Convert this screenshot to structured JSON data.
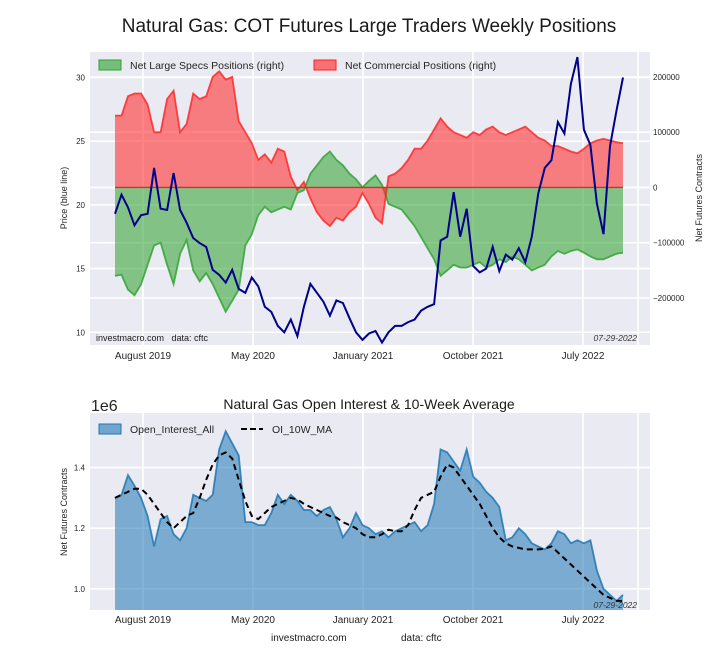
{
  "figure": {
    "title": "Natural Gas: COT Futures Large Traders Weekly Positions",
    "footer_site": "investmacro.com",
    "footer_data": "data: cftc"
  },
  "chart_data": [
    {
      "type": "area",
      "title": "Natural Gas: COT Futures Large Traders Weekly Positions",
      "xlabel": "",
      "ylabel": "Price (blue line)",
      "ylabel_right": "Net Futures Contracts",
      "x_tick_labels": [
        "August 2019",
        "May 2020",
        "January 2021",
        "October 2021",
        "July 2022"
      ],
      "y_left_ticks": [
        "10",
        "15",
        "20",
        "25",
        "30"
      ],
      "y_right_ticks": [
        "−200000",
        "−100000",
        "0",
        "100000",
        "200000"
      ],
      "ylim_left": [
        9,
        32
      ],
      "ylim_right": [
        -285000,
        245000
      ],
      "grid": true,
      "legend_position": "top-left",
      "watermark": "investmacro.com   data: cftc",
      "date_stamp": "07-29-2022",
      "x": [
        0,
        2,
        4,
        6,
        8,
        10,
        12,
        14,
        16,
        18,
        20,
        22,
        24,
        26,
        28,
        30,
        32,
        34,
        36,
        38,
        40,
        42,
        44,
        46,
        48,
        50,
        52,
        54,
        56,
        58,
        60,
        62,
        64,
        66,
        68,
        70,
        72,
        74,
        76,
        78,
        80,
        82,
        84,
        86,
        88,
        90,
        92,
        94,
        96,
        98,
        100,
        102,
        104,
        106,
        108,
        110,
        112,
        114,
        116,
        118,
        120,
        122,
        124,
        126,
        128,
        130,
        132,
        134,
        136,
        138,
        140,
        142,
        144,
        146,
        148,
        150,
        152,
        154,
        156
      ],
      "series": [
        {
          "name": "Net Large Specs Positions (right)",
          "axis": "right",
          "color": "#2ca02c",
          "values": [
            -160000,
            -158000,
            -185000,
            -195000,
            -175000,
            -140000,
            -105000,
            -100000,
            -140000,
            -175000,
            -120000,
            -95000,
            -150000,
            -170000,
            -155000,
            -175000,
            -200000,
            -225000,
            -205000,
            -185000,
            -105000,
            -85000,
            -50000,
            -35000,
            -45000,
            -40000,
            -35000,
            -40000,
            -10000,
            -5000,
            25000,
            40000,
            55000,
            65000,
            50000,
            40000,
            25000,
            15000,
            0,
            12000,
            22000,
            5000,
            -30000,
            -35000,
            -40000,
            -55000,
            -70000,
            -90000,
            -110000,
            -130000,
            -160000,
            -150000,
            -140000,
            -145000,
            -145000,
            -140000,
            -135000,
            -145000,
            -140000,
            -130000,
            -135000,
            -125000,
            -130000,
            -140000,
            -150000,
            -145000,
            -140000,
            -125000,
            -115000,
            -120000,
            -115000,
            -112000,
            -118000,
            -125000,
            -130000,
            -130000,
            -125000,
            -120000,
            -118000
          ]
        },
        {
          "name": "Net Commercial Positions (right)",
          "axis": "right",
          "color": "#ff2020",
          "values": [
            130000,
            130000,
            165000,
            170000,
            170000,
            150000,
            100000,
            100000,
            160000,
            175000,
            100000,
            115000,
            170000,
            160000,
            165000,
            200000,
            210000,
            195000,
            200000,
            120000,
            100000,
            80000,
            50000,
            60000,
            45000,
            70000,
            65000,
            20000,
            -5000,
            10000,
            -20000,
            -45000,
            -60000,
            -70000,
            -55000,
            -60000,
            -45000,
            -35000,
            -10000,
            -30000,
            -55000,
            -65000,
            20000,
            25000,
            35000,
            50000,
            70000,
            70000,
            85000,
            105000,
            125000,
            110000,
            100000,
            95000,
            90000,
            100000,
            95000,
            105000,
            110000,
            100000,
            95000,
            100000,
            105000,
            110000,
            100000,
            90000,
            85000,
            75000,
            75000,
            70000,
            65000,
            62000,
            70000,
            80000,
            85000,
            88000,
            85000,
            82000,
            80000
          ]
        },
        {
          "name": "Price (blue line)",
          "axis": "left",
          "color": "#00008b",
          "values": [
            19.3,
            20.8,
            19.8,
            18.4,
            19.2,
            19.3,
            22.9,
            19.7,
            19.6,
            22.5,
            19.6,
            18.6,
            17.4,
            17.0,
            16.7,
            14.9,
            14.5,
            13.9,
            14.9,
            13.4,
            13.1,
            14.3,
            13.6,
            12.0,
            11.6,
            10.5,
            10.0,
            11.0,
            9.7,
            12.0,
            13.8,
            13.1,
            12.4,
            11.3,
            12.5,
            12.3,
            11.1,
            10.0,
            9.4,
            9.9,
            10.1,
            9.2,
            10.0,
            10.5,
            10.5,
            10.8,
            11.0,
            11.7,
            12.0,
            12.2,
            17.2,
            17.5,
            21.0,
            17.5,
            19.7,
            15.2,
            14.7,
            15.0,
            16.7,
            14.8,
            16.1,
            15.7,
            16.6,
            15.5,
            17.5,
            20.9,
            22.9,
            23.5,
            26.5,
            25.6,
            29.5,
            31.6,
            25.9,
            24.7,
            20.1,
            17.7,
            24.6,
            27.4,
            30.0
          ]
        }
      ]
    },
    {
      "type": "area",
      "title": "Natural Gas Open Interest & 10-Week Average",
      "xlabel": "",
      "ylabel": "Net Futures Contracts",
      "y_scale_label": "1e6",
      "x_tick_labels": [
        "August 2019",
        "May 2020",
        "January 2021",
        "October 2021",
        "July 2022"
      ],
      "y_ticks": [
        "1.0",
        "1.2",
        "1.4"
      ],
      "ylim": [
        0.93,
        1.58
      ],
      "grid": true,
      "legend_position": "top-left",
      "date_stamp": "07-29-2022",
      "x": [
        0,
        2,
        4,
        6,
        8,
        10,
        12,
        14,
        16,
        18,
        20,
        22,
        24,
        26,
        28,
        30,
        32,
        34,
        36,
        38,
        40,
        42,
        44,
        46,
        48,
        50,
        52,
        54,
        56,
        58,
        60,
        62,
        64,
        66,
        68,
        70,
        72,
        74,
        76,
        78,
        80,
        82,
        84,
        86,
        88,
        90,
        92,
        94,
        96,
        98,
        100,
        102,
        104,
        106,
        108,
        110,
        112,
        114,
        116,
        118,
        120,
        122,
        124,
        126,
        128,
        130,
        132,
        134,
        136,
        138,
        140,
        142,
        144,
        146,
        148,
        150,
        152,
        154,
        156
      ],
      "series": [
        {
          "name": "Open_Interest_All",
          "color": "#1f77b4",
          "values": [
            1.3,
            1.31,
            1.375,
            1.34,
            1.3,
            1.24,
            1.14,
            1.23,
            1.24,
            1.18,
            1.16,
            1.2,
            1.31,
            1.3,
            1.29,
            1.31,
            1.46,
            1.52,
            1.48,
            1.44,
            1.22,
            1.22,
            1.21,
            1.21,
            1.25,
            1.31,
            1.28,
            1.31,
            1.29,
            1.26,
            1.26,
            1.24,
            1.26,
            1.27,
            1.23,
            1.17,
            1.2,
            1.25,
            1.21,
            1.2,
            1.18,
            1.19,
            1.17,
            1.19,
            1.2,
            1.21,
            1.22,
            1.19,
            1.21,
            1.28,
            1.46,
            1.45,
            1.42,
            1.39,
            1.46,
            1.37,
            1.35,
            1.32,
            1.3,
            1.27,
            1.16,
            1.17,
            1.2,
            1.18,
            1.15,
            1.14,
            1.13,
            1.15,
            1.19,
            1.18,
            1.15,
            1.16,
            1.15,
            1.16,
            1.06,
            1.0,
            0.98,
            0.96,
            0.98
          ]
        },
        {
          "name": "OI_10W_MA",
          "color": "#000000",
          "values": [
            1.3,
            1.31,
            1.32,
            1.33,
            1.33,
            1.31,
            1.28,
            1.25,
            1.22,
            1.2,
            1.22,
            1.24,
            1.25,
            1.3,
            1.36,
            1.41,
            1.44,
            1.45,
            1.43,
            1.36,
            1.29,
            1.24,
            1.23,
            1.25,
            1.27,
            1.28,
            1.29,
            1.3,
            1.295,
            1.28,
            1.27,
            1.26,
            1.25,
            1.24,
            1.235,
            1.22,
            1.21,
            1.2,
            1.18,
            1.17,
            1.17,
            1.18,
            1.195,
            1.19,
            1.19,
            1.21,
            1.26,
            1.3,
            1.31,
            1.32,
            1.37,
            1.41,
            1.4,
            1.37,
            1.34,
            1.31,
            1.28,
            1.24,
            1.2,
            1.17,
            1.15,
            1.14,
            1.135,
            1.13,
            1.13,
            1.13,
            1.132,
            1.14,
            1.12,
            1.1,
            1.08,
            1.06,
            1.04,
            1.02,
            1.0,
            0.98,
            0.97,
            0.96,
            0.96
          ]
        }
      ]
    }
  ]
}
